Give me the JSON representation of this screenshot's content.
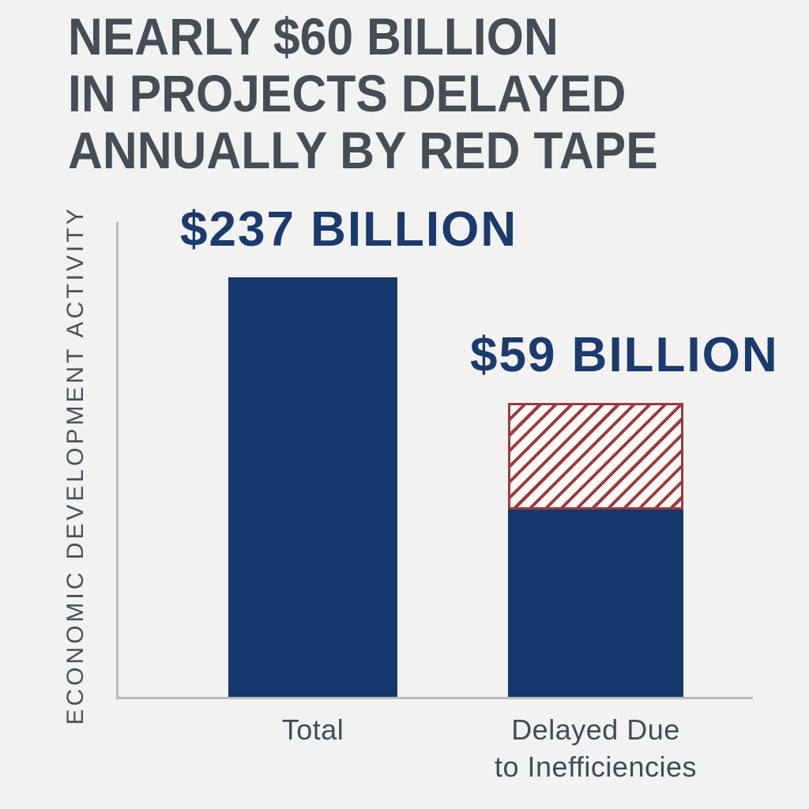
{
  "title": {
    "lines": [
      "NEARLY $60 BILLION",
      "IN PROJECTS DELAYED",
      "ANNUALLY BY RED TAPE"
    ]
  },
  "chart": {
    "y_axis_label": "ECONOMIC DEVELOPMENT ACTIVITY",
    "bars": [
      {
        "category": "Total",
        "value_label": "$237 BILLION",
        "style": "solid-navy"
      },
      {
        "category_lines": [
          "Delayed Due",
          "to Inefficiencies"
        ],
        "value_label": "$59 BILLION",
        "style": "hatched-red-top-solid-navy-bottom"
      }
    ]
  },
  "colors": {
    "background": "#f2f2f0",
    "title_text": "#454e57",
    "navy_bar": "#14386b",
    "navy_value_text": "#1b3a6e",
    "hatch_red": "#9c3a3e",
    "axis_gray": "#b8babd",
    "category_text": "#414c56"
  },
  "chart_data": {
    "type": "bar",
    "title": "NEARLY $60 BILLION IN PROJECTS DELAYED ANNUALLY BY RED TAPE",
    "categories": [
      "Total",
      "Delayed Due to Inefficiencies"
    ],
    "values": [
      237,
      59
    ],
    "value_labels": [
      "$237 BILLION",
      "$59 BILLION"
    ],
    "units": "USD billions",
    "xlabel": "",
    "ylabel": "ECONOMIC DEVELOPMENT ACTIVITY",
    "legend": "none",
    "grid": false,
    "axis_ticks": "none",
    "not_to_scale": true,
    "notes": "Stylized infographic: second bar's upper segment is hatched with red diagonal stripes over a solid navy lower segment; drawn bar heights are not proportional to the stated dollar values."
  }
}
